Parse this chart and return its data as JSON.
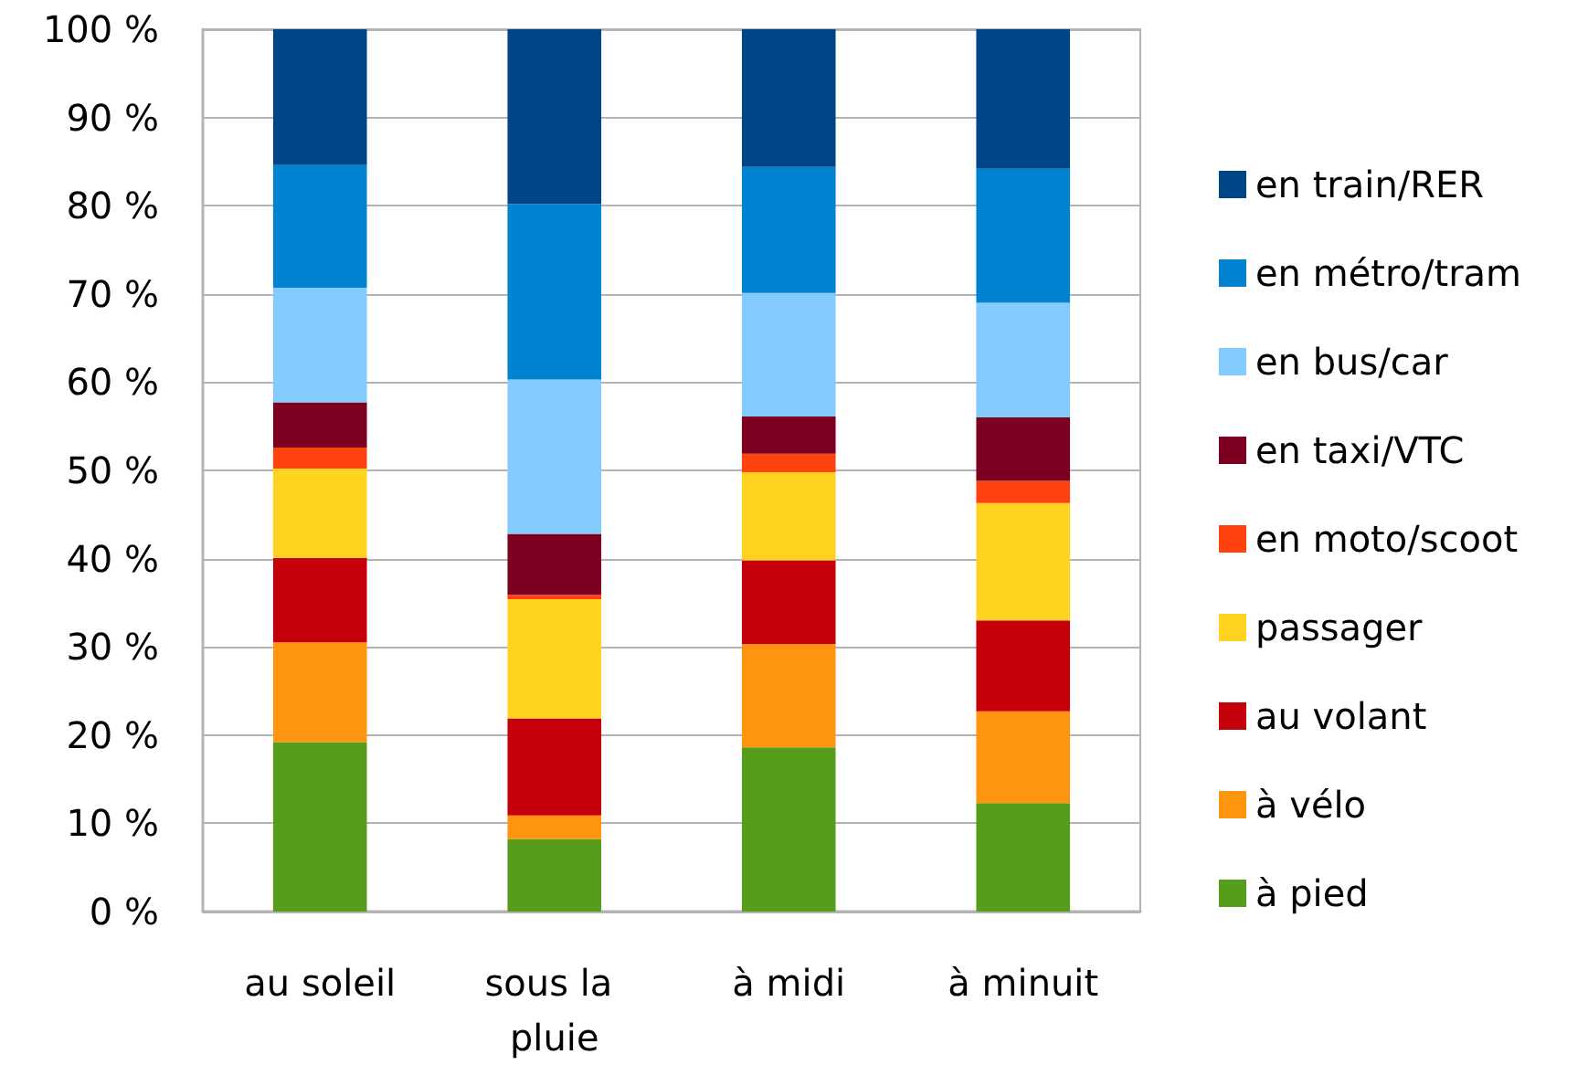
{
  "chart_data": {
    "type": "bar",
    "stacked": true,
    "categories": [
      "au soleil",
      "sous la pluie",
      "à midi",
      "à minuit"
    ],
    "series": [
      {
        "name": "à pied",
        "color": "#579d1c",
        "values": [
          19.2,
          8.2,
          18.6,
          12.3
        ]
      },
      {
        "name": "à vélo",
        "color": "#ff950e",
        "values": [
          11.3,
          2.7,
          11.7,
          10.4
        ]
      },
      {
        "name": "au volant",
        "color": "#c5000b",
        "values": [
          9.6,
          11.0,
          9.5,
          10.3
        ]
      },
      {
        "name": "passager",
        "color": "#ffd320",
        "values": [
          10.1,
          13.5,
          10.0,
          13.3
        ]
      },
      {
        "name": "en moto/scoot",
        "color": "#ff420e",
        "values": [
          2.4,
          0.5,
          2.1,
          2.5
        ]
      },
      {
        "name": "en taxi/VTC",
        "color": "#7e0021",
        "values": [
          5.1,
          6.9,
          4.2,
          7.2
        ]
      },
      {
        "name": "en bus/car",
        "color": "#83caff",
        "values": [
          13.0,
          17.5,
          14.0,
          13.0
        ]
      },
      {
        "name": "en métro/tram",
        "color": "#0084d1",
        "values": [
          13.9,
          19.9,
          14.3,
          15.2
        ]
      },
      {
        "name": "en train/RER",
        "color": "#004586",
        "values": [
          15.4,
          19.8,
          15.6,
          15.8
        ]
      }
    ],
    "ylim": [
      0,
      100
    ],
    "yticks": [
      {
        "value": 0,
        "label": "0 %"
      },
      {
        "value": 10,
        "label": "10 %"
      },
      {
        "value": 20,
        "label": "20 %"
      },
      {
        "value": 30,
        "label": "30 %"
      },
      {
        "value": 40,
        "label": "40 %"
      },
      {
        "value": 50,
        "label": "50 %"
      },
      {
        "value": 60,
        "label": "60 %"
      },
      {
        "value": 70,
        "label": "70 %"
      },
      {
        "value": 80,
        "label": "80 %"
      },
      {
        "value": 90,
        "label": "90 %"
      },
      {
        "value": 100,
        "label": "100 %"
      }
    ],
    "grid": "y",
    "legend": "right"
  }
}
